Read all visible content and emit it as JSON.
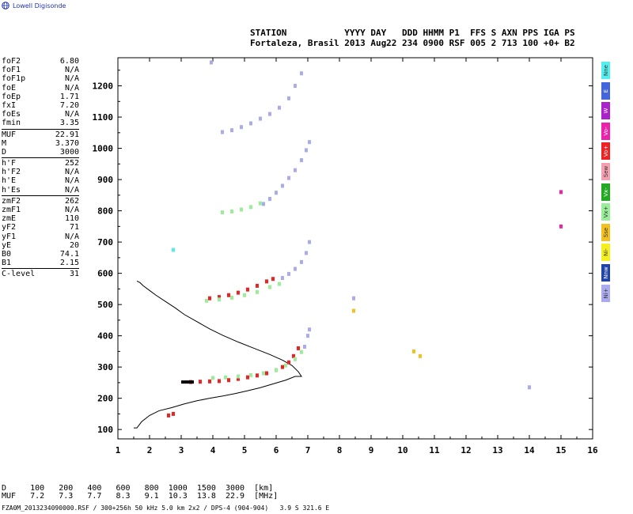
{
  "logo": {
    "text": "Lowell Digisonde",
    "icon": "globe-icon"
  },
  "header": {
    "line1": "STATION           YYYY DAY   DDD HHMM P1  FFS S AXN PPS IGA PS",
    "line2": "Fortaleza, Brasil 2013 Aug22 234 0900 RSF 005 2 713 100 +0+ B2"
  },
  "params": {
    "group1": [
      {
        "label": "foF2",
        "value": "6.80"
      },
      {
        "label": "foF1",
        "value": "N/A"
      },
      {
        "label": "foF1p",
        "value": "N/A"
      },
      {
        "label": "foE",
        "value": "N/A"
      },
      {
        "label": "foEp",
        "value": "1.71"
      },
      {
        "label": "fxI",
        "value": "7.20"
      },
      {
        "label": "foEs",
        "value": "N/A"
      },
      {
        "label": "fmin",
        "value": "3.35"
      }
    ],
    "group2": [
      {
        "label": "MUF",
        "value": "22.91"
      },
      {
        "label": "M",
        "value": "3.370"
      },
      {
        "label": "D",
        "value": "3000"
      }
    ],
    "group3": [
      {
        "label": "h'F",
        "value": "252"
      },
      {
        "label": "h'F2",
        "value": "N/A"
      },
      {
        "label": "h'E",
        "value": "N/A"
      },
      {
        "label": "h'Es",
        "value": "N/A"
      }
    ],
    "group4": [
      {
        "label": "zmF2",
        "value": "262"
      },
      {
        "label": "zmF1",
        "value": "N/A"
      },
      {
        "label": "zmE",
        "value": "110"
      },
      {
        "label": "yF2",
        "value": "71"
      },
      {
        "label": "yF1",
        "value": "N/A"
      },
      {
        "label": "yE",
        "value": "20"
      },
      {
        "label": "B0",
        "value": "74.1"
      },
      {
        "label": "B1",
        "value": "2.15"
      }
    ],
    "group5": [
      {
        "label": "C-level",
        "value": "31"
      }
    ]
  },
  "legend": [
    {
      "label": "Nne",
      "color": "#55eeee"
    },
    {
      "label": "E",
      "color": "#4466dd"
    },
    {
      "label": "W",
      "color": "#aa22cc"
    },
    {
      "label": "Vo-",
      "color": "#ee22aa"
    },
    {
      "label": "Vo+",
      "color": "#ee2222"
    },
    {
      "label": "Sew",
      "color": "#f4a0b0"
    },
    {
      "label": "Vx-",
      "color": "#22aa22"
    },
    {
      "label": "Vx+",
      "color": "#99ee99"
    },
    {
      "label": "Sse",
      "color": "#f4c020"
    },
    {
      "label": "Ni-",
      "color": "#f4f020"
    },
    {
      "label": "Nnw",
      "color": "#2244aa"
    },
    {
      "label": "Ni+",
      "color": "#aaaaee"
    }
  ],
  "chart_data": {
    "type": "scatter",
    "x_ticks": [
      1,
      2,
      3,
      4,
      5,
      6,
      7,
      8,
      9,
      10,
      11,
      12,
      13,
      14,
      15,
      16
    ],
    "y_ticks": [
      100,
      200,
      300,
      400,
      500,
      600,
      700,
      800,
      900,
      1000,
      1100,
      1200
    ],
    "xlim": [
      1,
      16
    ],
    "ylim": [
      70,
      1290
    ],
    "grid": false,
    "profile_line": {
      "x": [
        1.5,
        1.6,
        1.75,
        2.0,
        2.3,
        2.7,
        3.1,
        3.5,
        3.9,
        4.3,
        4.7,
        5.1,
        5.5,
        5.9,
        6.3,
        6.6,
        6.8,
        6.7,
        6.5,
        6.2,
        5.8,
        5.3,
        4.8,
        4.3,
        3.9,
        3.5,
        3.1,
        2.8,
        2.5,
        2.2,
        2.0,
        1.8,
        1.7,
        1.6
      ],
      "y": [
        105,
        105,
        125,
        145,
        160,
        170,
        182,
        192,
        200,
        207,
        215,
        224,
        234,
        246,
        258,
        270,
        270,
        285,
        305,
        322,
        340,
        360,
        380,
        402,
        422,
        445,
        468,
        490,
        510,
        530,
        545,
        560,
        570,
        575
      ]
    },
    "traces": [
      {
        "name": "Vo+",
        "color": "#ee2222",
        "x": [
          3.3,
          3.6,
          3.9,
          4.2,
          4.5,
          4.8,
          5.1,
          5.4,
          5.7,
          6.0,
          6.2,
          6.4,
          6.55,
          6.7
        ],
        "y": [
          252,
          253,
          254,
          255,
          258,
          262,
          267,
          273,
          280,
          290,
          300,
          315,
          335,
          360
        ]
      },
      {
        "name": "Vo+",
        "color": "#ee2222",
        "x": [
          3.9,
          4.2,
          4.5,
          4.8,
          5.1,
          5.4,
          5.7,
          5.9
        ],
        "y": [
          520,
          524,
          530,
          538,
          548,
          560,
          574,
          582
        ]
      },
      {
        "name": "Vx+",
        "color": "#99ee99",
        "x": [
          4.0,
          4.4,
          4.8,
          5.2,
          5.6,
          6.0,
          6.3,
          6.6,
          6.8
        ],
        "y": [
          265,
          267,
          270,
          274,
          280,
          290,
          305,
          325,
          348
        ]
      },
      {
        "name": "Vx+",
        "color": "#99ee99",
        "x": [
          3.8,
          4.2,
          4.6,
          5.0,
          5.4,
          5.8,
          6.1
        ],
        "y": [
          512,
          516,
          522,
          530,
          540,
          556,
          566
        ]
      },
      {
        "name": "Vx+",
        "color": "#99ee99",
        "x": [
          4.3,
          4.6,
          4.9,
          5.2,
          5.5,
          5.8
        ],
        "y": [
          795,
          798,
          804,
          812,
          824,
          838
        ]
      },
      {
        "name": "Ni+",
        "color": "#aaaaee",
        "x": [
          6.2,
          6.4,
          6.6,
          6.8,
          6.95,
          7.05
        ],
        "y": [
          585,
          598,
          614,
          636,
          665,
          700
        ]
      },
      {
        "name": "Ni+",
        "color": "#aaaaee",
        "x": [
          5.6,
          5.8,
          6.0,
          6.2,
          6.4,
          6.6,
          6.8,
          6.95,
          7.05
        ],
        "y": [
          822,
          838,
          858,
          880,
          905,
          930,
          962,
          994,
          1020
        ]
      },
      {
        "name": "Ni+",
        "color": "#aaaaee",
        "x": [
          4.3,
          4.6,
          4.9,
          5.2,
          5.5,
          5.8,
          6.1,
          6.4,
          6.6,
          6.8
        ],
        "y": [
          1052,
          1058,
          1068,
          1080,
          1095,
          1110,
          1130,
          1160,
          1200,
          1240
        ]
      },
      {
        "name": "Ni+",
        "color": "#aaaaee",
        "x": [
          6.9,
          7.0,
          7.05
        ],
        "y": [
          365,
          400,
          420
        ]
      },
      {
        "name": "Ni+",
        "color": "#aaaaee",
        "x": [
          8.45,
          14.0,
          3.95
        ],
        "y": [
          520,
          235,
          1275
        ]
      },
      {
        "name": "Vo-",
        "color": "#ee22aa",
        "x": [
          15.0,
          15.0
        ],
        "y": [
          860,
          750
        ]
      },
      {
        "name": "Sse",
        "color": "#f4c020",
        "x": [
          8.45,
          10.55,
          10.35
        ],
        "y": [
          480,
          335,
          350
        ]
      },
      {
        "name": "Nne",
        "color": "#55eeee",
        "x": [
          2.75
        ],
        "y": [
          675
        ]
      },
      {
        "name": "Vo+",
        "color": "#ee2222",
        "x": [
          2.6,
          2.75
        ],
        "y": [
          145,
          150
        ]
      }
    ],
    "trace_points_black": {
      "x": [
        3.05,
        3.15,
        3.25,
        3.35
      ],
      "y": [
        252,
        252,
        252,
        252
      ]
    }
  },
  "muf_table": {
    "line1": "D     100   200   400   600   800  1000  1500  3000  [km]",
    "line2": "MUF   7.2   7.3   7.7   8.3   9.1  10.3  13.8  22.9  [MHz]"
  },
  "footer": "FZA0M_2013234090000.RSF / 300+256h 50 kHz 5.0 km 2x2 / DPS-4 (904-904)   3.9 S 321.6 E"
}
